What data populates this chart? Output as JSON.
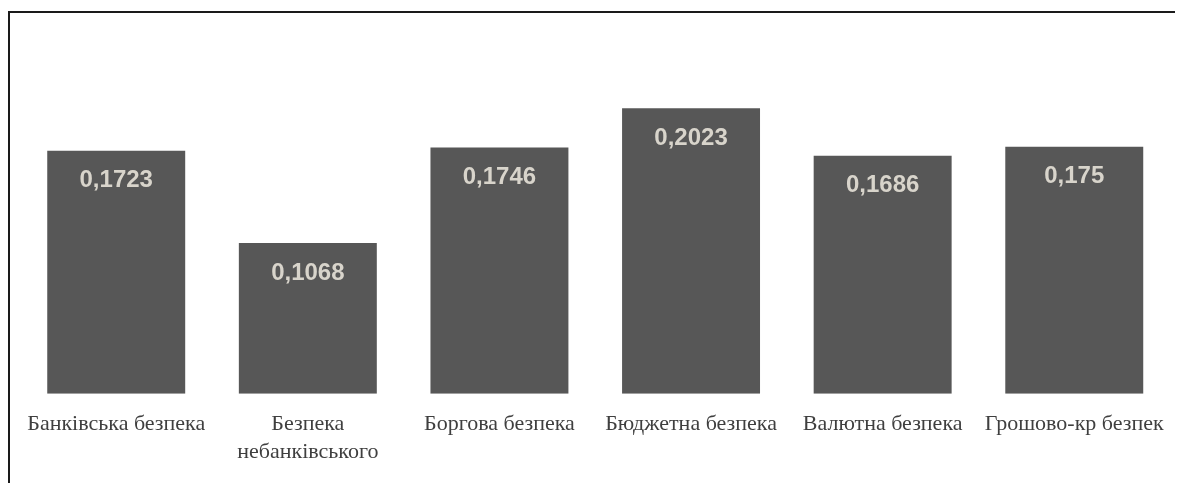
{
  "chart_data": {
    "type": "bar",
    "categories": [
      "Банківська безпека",
      "Безпека небанківського",
      "Боргова безпека",
      "Бюджетна безпека",
      "Валютна безпека",
      "Грошово-кр безпек"
    ],
    "values": [
      0.1723,
      0.1068,
      0.1746,
      0.2023,
      0.1686,
      0.175
    ],
    "color": "#575757",
    "value_labels": [
      "0,1723",
      "0,1068",
      "0,1746",
      "0,2023",
      "0,1686",
      "0,175"
    ],
    "grid": false,
    "legend": false
  }
}
